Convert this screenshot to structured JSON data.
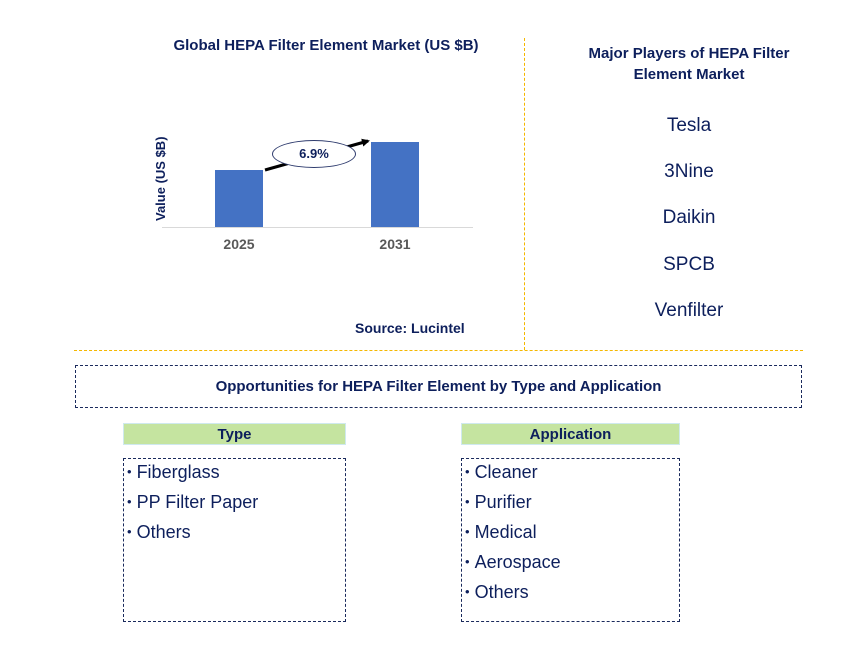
{
  "chart_data": {
    "type": "bar",
    "title": "Global HEPA Filter Element Market (US $B)",
    "xlabel": "",
    "ylabel": "Value (US $B)",
    "categories": [
      "2025",
      "2031"
    ],
    "values": [
      1.0,
      1.49
    ],
    "values_note": "relative bar heights; no numeric axis shown",
    "annotations": [
      {
        "type": "cagr-arrow",
        "from": "2025",
        "to": "2031",
        "label": "6.9%"
      }
    ],
    "grid": false,
    "legend": null,
    "source": "Source: Lucintel",
    "bar_color": "#4472c4"
  },
  "players": {
    "title": "Major Players of HEPA Filter Element Market",
    "items": [
      "Tesla",
      "3Nine",
      "Daikin",
      "SPCB",
      "Venfilter"
    ]
  },
  "opportunities": {
    "title": "Opportunities for HEPA Filter Element by Type and Application",
    "type": {
      "header": "Type",
      "items": [
        "Fiberglass",
        "PP Filter Paper",
        "Others"
      ]
    },
    "application": {
      "header": "Application",
      "items": [
        "Cleaner",
        "Purifier",
        "Medical",
        "Aerospace",
        "Others"
      ]
    }
  },
  "bullet": "•",
  "colors": {
    "text_navy": "#0d1f5c",
    "bar_blue": "#4472c4",
    "divider_gold": "#f5b800",
    "header_green": "#c5e4a0"
  }
}
